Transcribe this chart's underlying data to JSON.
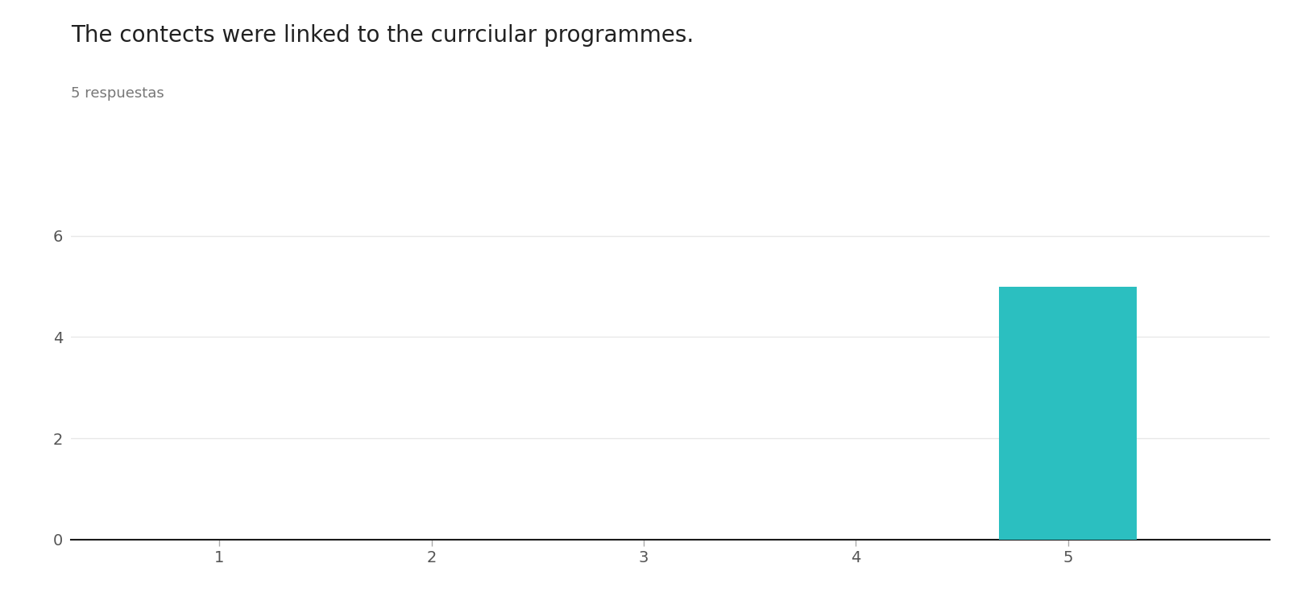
{
  "title": "The contects were linked to the currciular programmes.",
  "subtitle": "5 respuestas",
  "title_fontsize": 20,
  "subtitle_fontsize": 13,
  "bar_x": [
    5
  ],
  "bar_height": [
    5
  ],
  "bar_color": "#2BBFC0",
  "bar_width": 0.65,
  "xlim": [
    0.3,
    5.95
  ],
  "ylim": [
    0,
    6.3
  ],
  "xticks": [
    1,
    2,
    3,
    4,
    5
  ],
  "yticks": [
    0,
    2,
    4,
    6
  ],
  "background_color": "#ffffff",
  "grid_color": "#e8e8e8",
  "tick_label_color": "#555555",
  "title_color": "#212121",
  "subtitle_color": "#777777"
}
